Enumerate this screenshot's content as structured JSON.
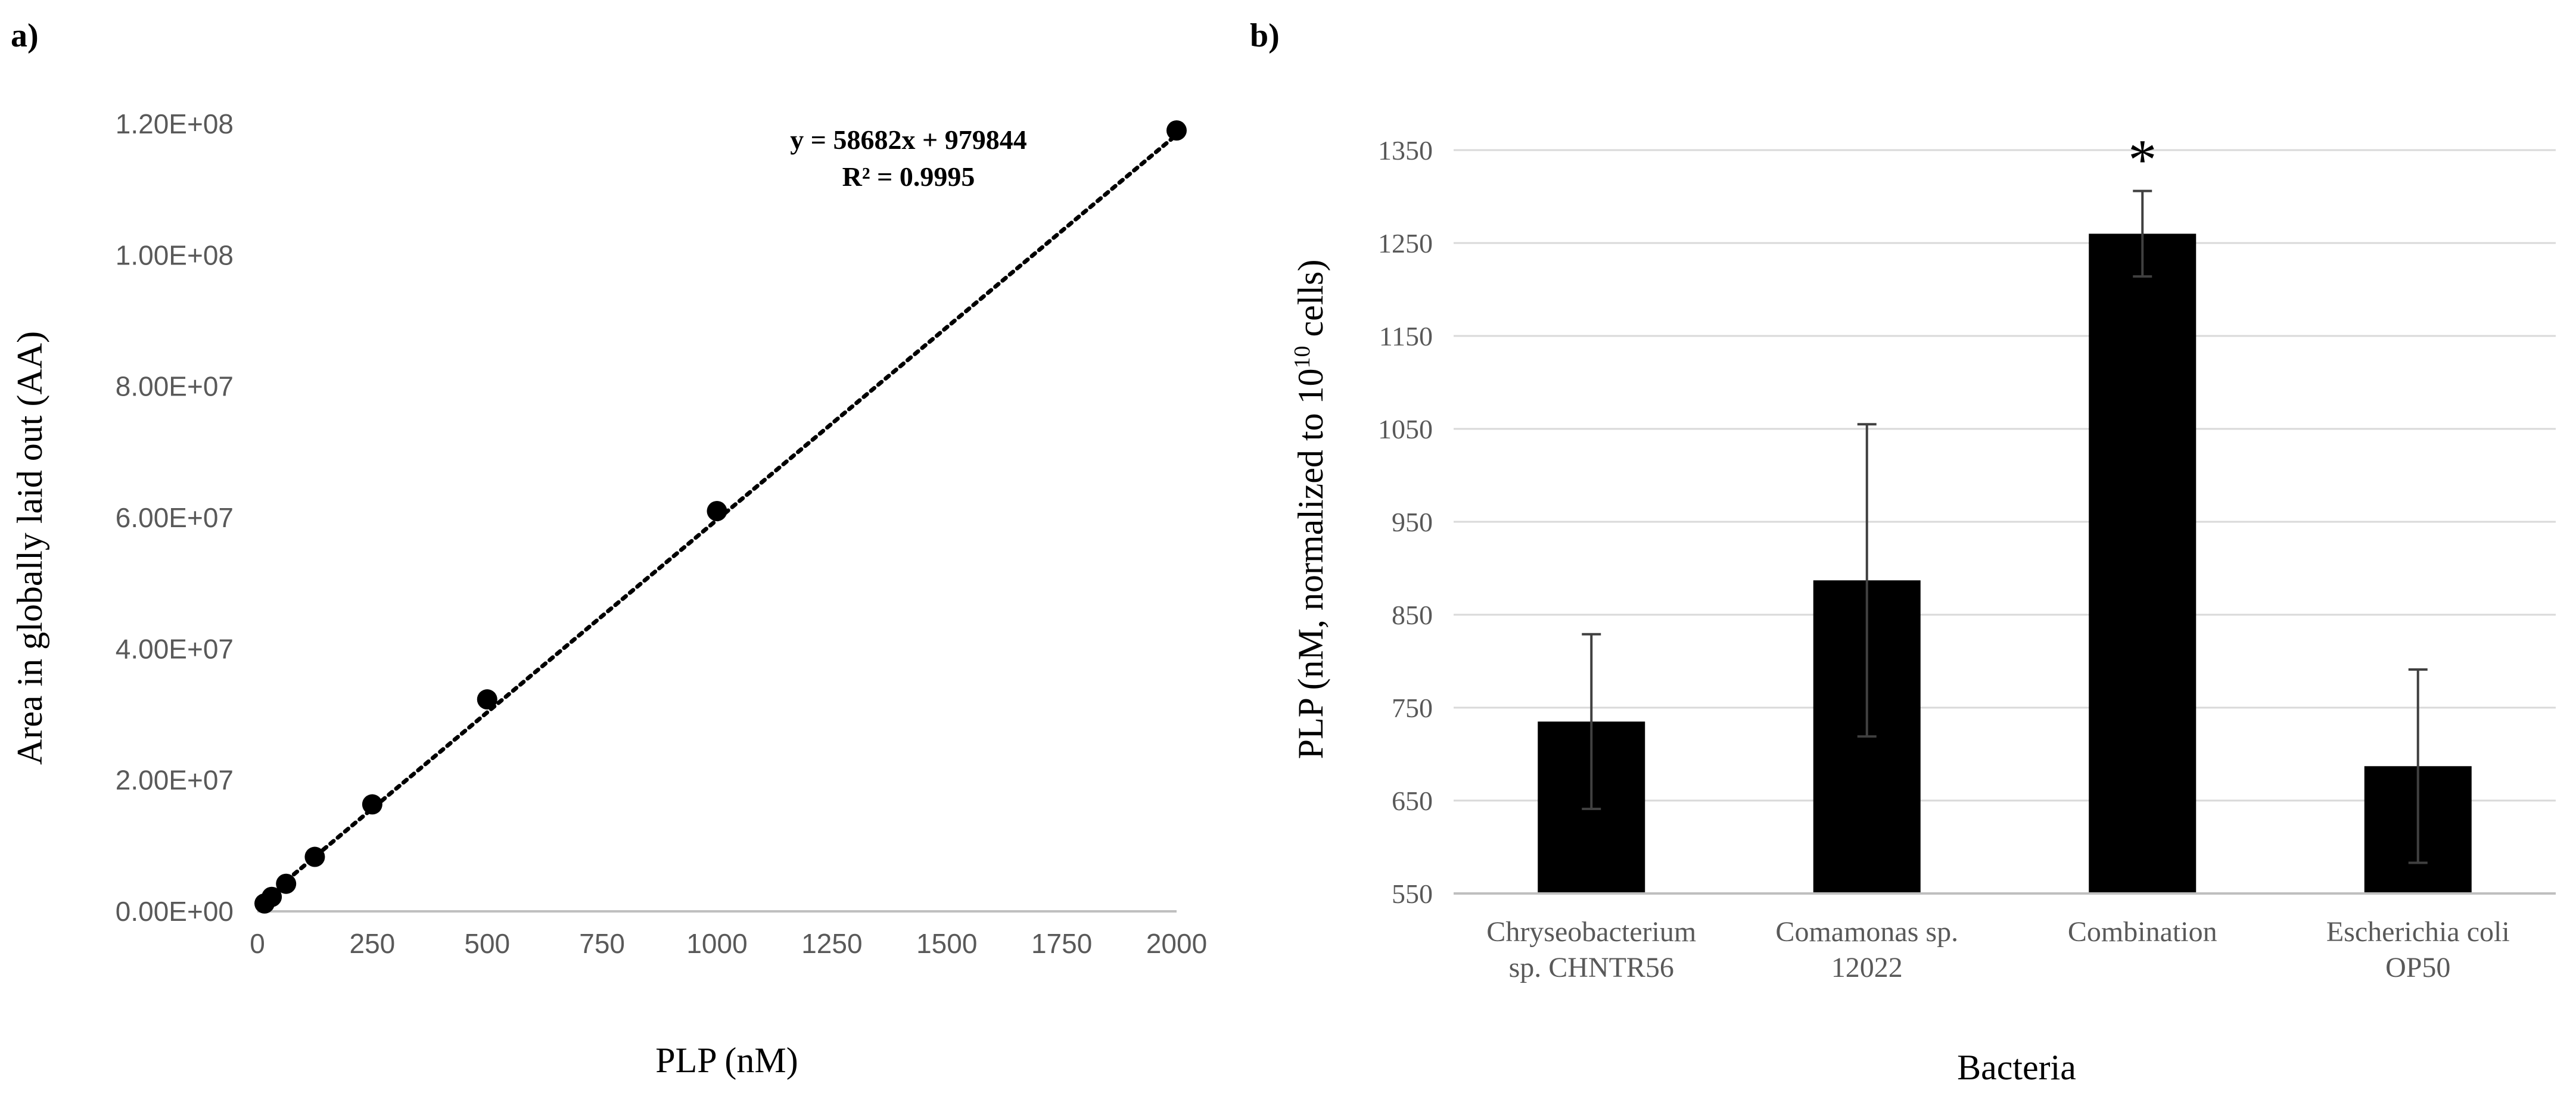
{
  "panels": {
    "a_label": "a)",
    "b_label": "b)"
  },
  "colors": {
    "marker": "#000000",
    "axis": "#bfbfbf",
    "tick_text": "#595959",
    "text": "#000000",
    "bar": "#000000",
    "error": "#404040"
  },
  "chart_data": [
    {
      "type": "scatter",
      "title": "",
      "xlabel": "PLP (nM)",
      "ylabel": "Area in globally laid out (AA)",
      "xlim": [
        0,
        2000
      ],
      "ylim": [
        0,
        120000000
      ],
      "xticks": [
        0,
        250,
        500,
        750,
        1000,
        1250,
        1500,
        1750,
        2000
      ],
      "xtick_labels": [
        "0",
        "250",
        "500",
        "750",
        "1000",
        "1250",
        "1500",
        "1750",
        "2000"
      ],
      "yticks": [
        0,
        20000000,
        40000000,
        60000000,
        80000000,
        100000000,
        120000000
      ],
      "ytick_labels": [
        "0.00E+00",
        "2.00E+07",
        "4.00E+07",
        "6.00E+07",
        "8.00E+07",
        "1.00E+08",
        "1.20E+08"
      ],
      "points": [
        {
          "x": 15.6,
          "y": 1200000
        },
        {
          "x": 31.25,
          "y": 2200000
        },
        {
          "x": 62.5,
          "y": 4200000
        },
        {
          "x": 125,
          "y": 8300000
        },
        {
          "x": 250,
          "y": 16300000
        },
        {
          "x": 500,
          "y": 32300000
        },
        {
          "x": 1000,
          "y": 61000000
        },
        {
          "x": 2000,
          "y": 119000000
        }
      ],
      "trendline": {
        "slope": 58682,
        "intercept": 979844,
        "x_range": [
          0,
          2000
        ]
      },
      "equation": "y = 58682x + 979844",
      "r_squared": "R² = 0.9995"
    },
    {
      "type": "bar",
      "title": "",
      "xlabel": "Bacteria",
      "ylabel_main": "PLP (nM, normalized to 10",
      "ylabel_sup": "10",
      "ylabel_end": " cells)",
      "ylim": [
        550,
        1350
      ],
      "yticks": [
        550,
        650,
        750,
        850,
        950,
        1050,
        1150,
        1250,
        1350
      ],
      "ytick_labels": [
        "550",
        "650",
        "750",
        "850",
        "950",
        "1050",
        "1150",
        "1250",
        "1350"
      ],
      "categories": [
        [
          "Chryseobacterium",
          "sp. CHNTR56"
        ],
        [
          "Comamonas sp.",
          "12022"
        ],
        [
          "Combination"
        ],
        [
          "Escherichia coli",
          "OP50"
        ]
      ],
      "values": [
        735,
        887,
        1260,
        687
      ],
      "errors": [
        94,
        168,
        46,
        104
      ],
      "annotations": [
        "",
        "",
        "*",
        ""
      ]
    }
  ]
}
